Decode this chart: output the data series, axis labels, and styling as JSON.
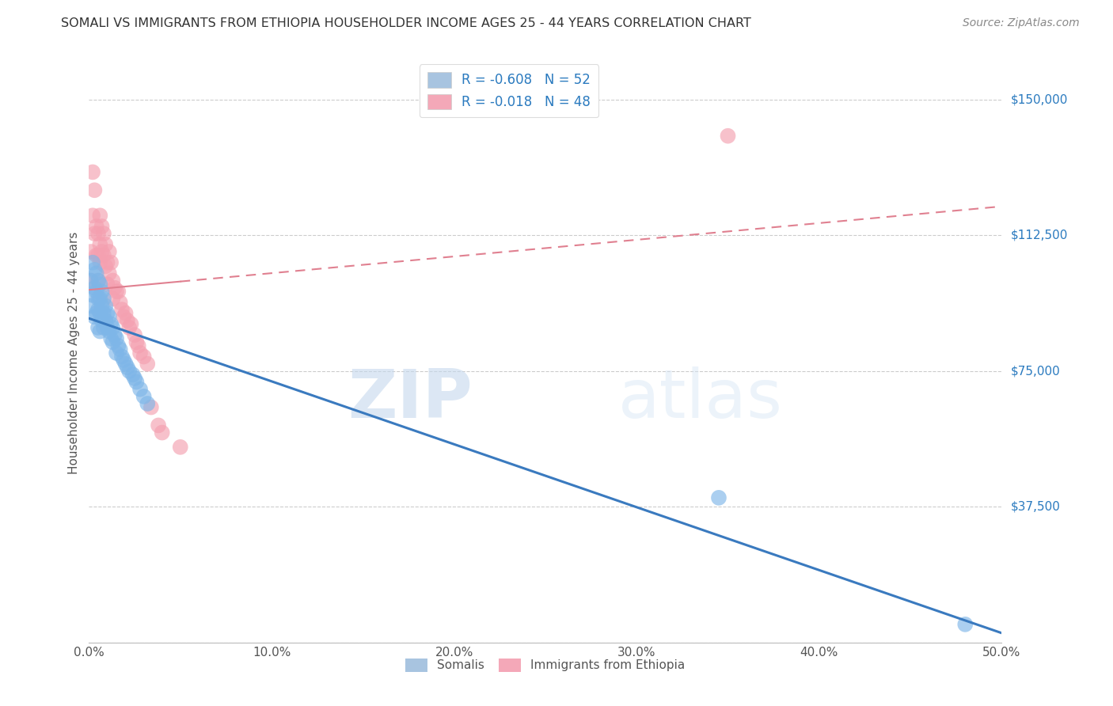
{
  "title": "SOMALI VS IMMIGRANTS FROM ETHIOPIA HOUSEHOLDER INCOME AGES 25 - 44 YEARS CORRELATION CHART",
  "source": "Source: ZipAtlas.com",
  "ylabel": "Householder Income Ages 25 - 44 years",
  "xlabel_ticks": [
    "0.0%",
    "10.0%",
    "20.0%",
    "30.0%",
    "40.0%",
    "50.0%"
  ],
  "ylabel_ticks": [
    "$37,500",
    "$75,000",
    "$112,500",
    "$150,000"
  ],
  "ylabel_values": [
    37500,
    75000,
    112500,
    150000
  ],
  "xlim": [
    0.0,
    0.5
  ],
  "ylim": [
    0,
    160000
  ],
  "legend_label1": "R = -0.608   N = 52",
  "legend_label2": "R = -0.018   N = 48",
  "legend_color1": "#a8c4e0",
  "legend_color2": "#f4a8b8",
  "scatter_color1": "#7eb6e8",
  "scatter_color2": "#f4a0b0",
  "line_color1": "#3a7abf",
  "line_color2": "#e08090",
  "watermark_zip": "ZIP",
  "watermark_atlas": "atlas",
  "background_color": "#ffffff",
  "grid_color": "#cccccc",
  "somali_x": [
    0.001,
    0.001,
    0.002,
    0.002,
    0.003,
    0.003,
    0.003,
    0.004,
    0.004,
    0.004,
    0.005,
    0.005,
    0.005,
    0.005,
    0.006,
    0.006,
    0.006,
    0.006,
    0.007,
    0.007,
    0.007,
    0.008,
    0.008,
    0.008,
    0.009,
    0.009,
    0.01,
    0.01,
    0.011,
    0.011,
    0.012,
    0.012,
    0.013,
    0.013,
    0.014,
    0.015,
    0.015,
    0.016,
    0.017,
    0.018,
    0.019,
    0.02,
    0.021,
    0.022,
    0.024,
    0.025,
    0.026,
    0.028,
    0.03,
    0.032,
    0.345,
    0.48
  ],
  "somali_y": [
    100000,
    93000,
    105000,
    96000,
    103000,
    98000,
    90000,
    102000,
    97000,
    91000,
    100000,
    95000,
    92000,
    87000,
    99000,
    95000,
    91000,
    86000,
    97000,
    93000,
    89000,
    95000,
    91000,
    87000,
    93000,
    89000,
    91000,
    87000,
    90000,
    86000,
    88000,
    84000,
    87000,
    83000,
    85000,
    84000,
    80000,
    82000,
    81000,
    79000,
    78000,
    77000,
    76000,
    75000,
    74000,
    73000,
    72000,
    70000,
    68000,
    66000,
    40000,
    5000
  ],
  "ethiopia_x": [
    0.001,
    0.001,
    0.002,
    0.002,
    0.003,
    0.003,
    0.004,
    0.004,
    0.005,
    0.005,
    0.005,
    0.006,
    0.006,
    0.006,
    0.007,
    0.007,
    0.008,
    0.008,
    0.009,
    0.009,
    0.01,
    0.01,
    0.011,
    0.011,
    0.012,
    0.013,
    0.013,
    0.014,
    0.015,
    0.016,
    0.017,
    0.018,
    0.019,
    0.02,
    0.021,
    0.022,
    0.023,
    0.025,
    0.026,
    0.027,
    0.028,
    0.03,
    0.032,
    0.034,
    0.038,
    0.04,
    0.05,
    0.35
  ],
  "ethiopia_y": [
    108000,
    100000,
    130000,
    118000,
    125000,
    113000,
    115000,
    107000,
    113000,
    107000,
    100000,
    118000,
    110000,
    105000,
    115000,
    108000,
    113000,
    107000,
    110000,
    104000,
    105000,
    99000,
    108000,
    102000,
    105000,
    100000,
    95000,
    98000,
    97000,
    97000,
    94000,
    92000,
    90000,
    91000,
    89000,
    87000,
    88000,
    85000,
    83000,
    82000,
    80000,
    79000,
    77000,
    65000,
    60000,
    58000,
    54000,
    140000
  ]
}
